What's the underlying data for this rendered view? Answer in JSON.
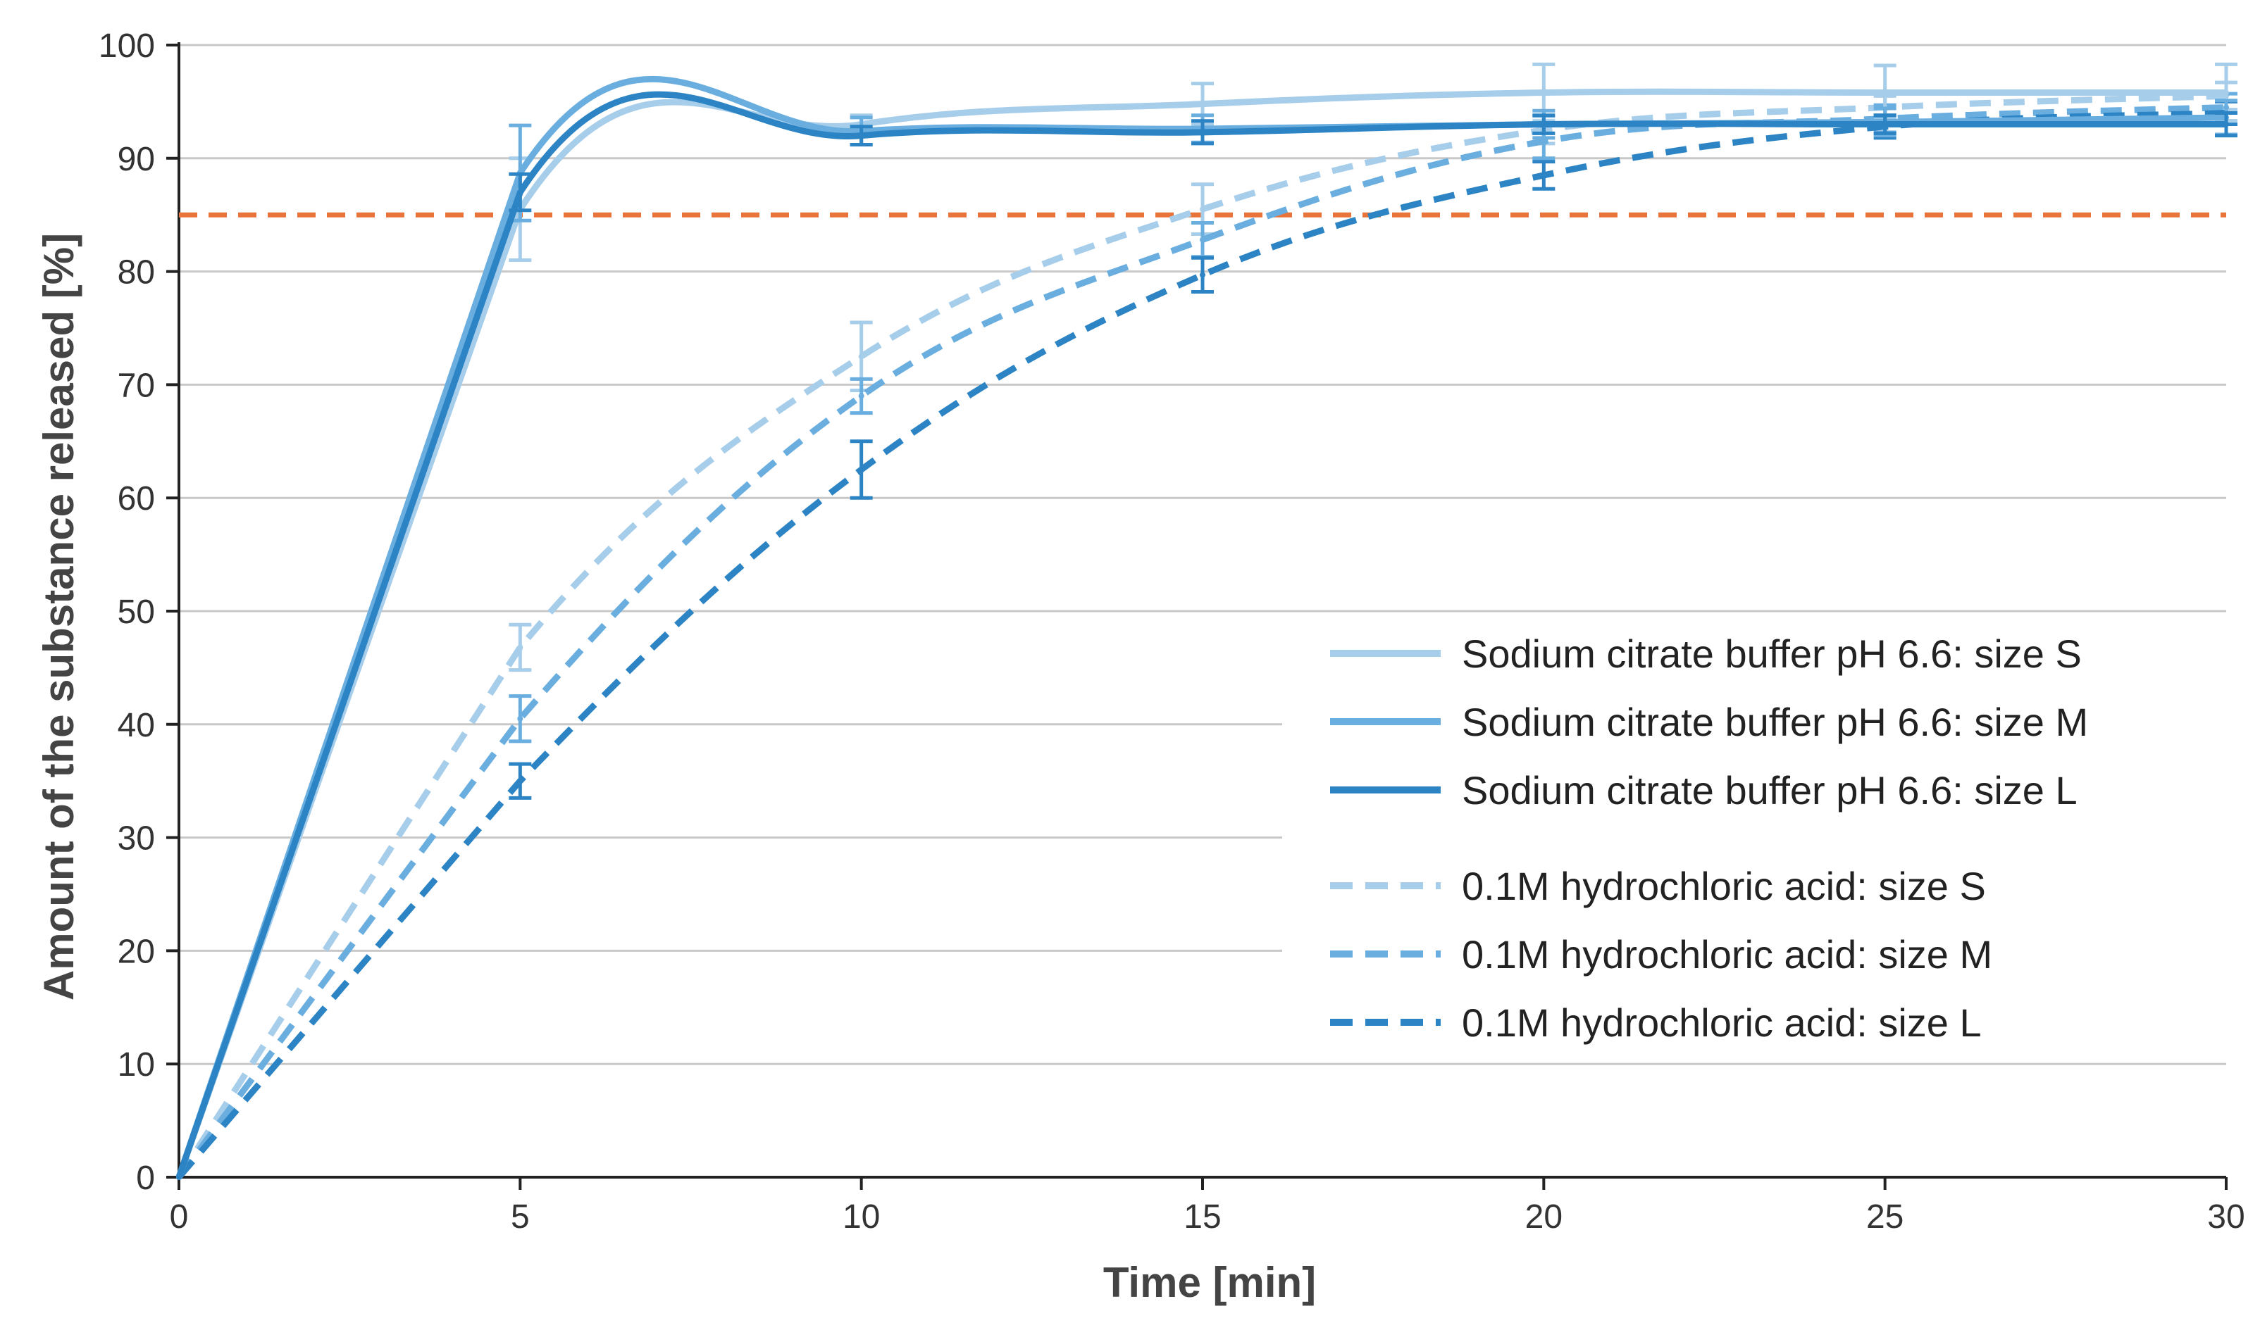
{
  "chart_data": {
    "type": "line",
    "title": "",
    "xlabel": "Time [min]",
    "ylabel": "Amount of the substance released [%]",
    "xlim": [
      0,
      30
    ],
    "ylim": [
      0,
      100
    ],
    "xticks": [
      0,
      5,
      10,
      15,
      20,
      25,
      30
    ],
    "yticks": [
      0,
      10,
      20,
      30,
      40,
      50,
      60,
      70,
      80,
      90,
      100
    ],
    "grid": "horizontal",
    "legend_position": "lower-right",
    "reference_line": {
      "y": 85,
      "color": "#E8743B",
      "style": "dashed"
    },
    "x": [
      0,
      5,
      10,
      15,
      20,
      25,
      30
    ],
    "series": [
      {
        "name": "Sodium citrate buffer pH 6.6: size S",
        "color": "#A6CDEA",
        "style": "solid",
        "values": [
          0,
          85.5,
          93,
          94.8,
          95.8,
          95.8,
          95.8
        ],
        "errors": [
          0,
          4.5,
          0.8,
          1.8,
          2.5,
          2.4,
          2.5
        ]
      },
      {
        "name": "Sodium citrate buffer pH 6.6: size M",
        "color": "#6AAEE0",
        "style": "solid",
        "values": [
          0,
          88.7,
          92.4,
          92.6,
          93.0,
          93.2,
          93.6
        ],
        "errors": [
          0,
          4.2,
          1.2,
          1.2,
          1.2,
          1.2,
          1.5
        ]
      },
      {
        "name": "Sodium citrate buffer pH 6.6: size L",
        "color": "#2C84C4",
        "style": "solid",
        "values": [
          0,
          87,
          92,
          92.3,
          93,
          93,
          93
        ],
        "errors": [
          0,
          1.6,
          0.8,
          1.0,
          0.8,
          0.8,
          1.0
        ]
      },
      {
        "name": "0.1M hydrochloric acid: size S",
        "color": "#A6CDEA",
        "style": "dashed",
        "values": [
          0,
          46.8,
          72.5,
          85.5,
          92.5,
          94.5,
          95.5
        ],
        "errors": [
          0,
          2.0,
          3.0,
          2.2,
          1.2,
          1.0,
          1.2
        ]
      },
      {
        "name": "0.1M hydrochloric acid: size M",
        "color": "#6AAEE0",
        "style": "dashed",
        "values": [
          0,
          40.5,
          69,
          82.8,
          91.5,
          93.5,
          94.5
        ],
        "errors": [
          0,
          2.0,
          1.5,
          1.5,
          1.5,
          1.2,
          1.2
        ]
      },
      {
        "name": "0.1M hydrochloric acid: size L",
        "color": "#2C84C4",
        "style": "dashed",
        "values": [
          0,
          35,
          62.5,
          79.7,
          88.5,
          92.8,
          94
        ],
        "errors": [
          0,
          1.5,
          2.5,
          1.5,
          1.2,
          1.0,
          1.0
        ]
      }
    ]
  }
}
